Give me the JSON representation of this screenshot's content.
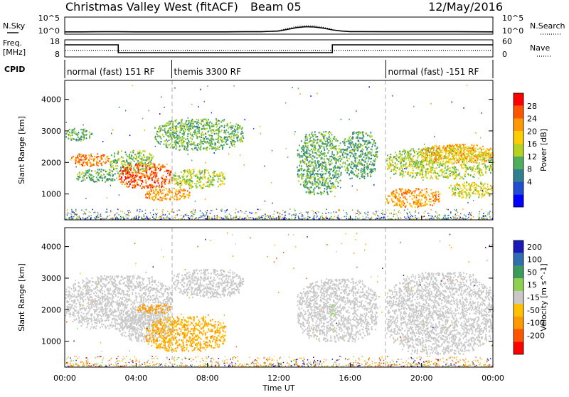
{
  "header": {
    "station": "Christmas Valley West (fitACF)",
    "beam": "Beam 05",
    "date": "12/May/2016"
  },
  "side_labels": {
    "nsky": "N.Sky",
    "freq_line1": "Freq.",
    "freq_line2": "[MHz]",
    "cpid": "CPID",
    "nsearch": "N.Search",
    "nave": "Nave"
  },
  "cpid_segments": [
    {
      "label": "normal (fast) 151 RF",
      "start_h": 0,
      "end_h": 6
    },
    {
      "label": "themis 3300 RF",
      "start_h": 6,
      "end_h": 18
    },
    {
      "label": "normal (fast) -151 RF",
      "start_h": 18,
      "end_h": 24
    }
  ],
  "noise_axis": {
    "left_ticks": [
      "10^5",
      "10^0"
    ],
    "right_ticks": [
      "10^5",
      "10^0"
    ]
  },
  "freq_axis": {
    "left_ticks": [
      "18",
      "8"
    ],
    "right_ticks": [
      "60",
      "0"
    ]
  },
  "x_axis": {
    "label": "Time UT",
    "ticks": [
      "00:00",
      "04:00",
      "08:00",
      "12:00",
      "16:00",
      "20:00",
      "00:00"
    ],
    "range_h": [
      0,
      24
    ]
  },
  "power_panel": {
    "ylabel": "Slant Range [km]",
    "yticks": [
      1000,
      2000,
      3000,
      4000
    ],
    "ylim": [
      180,
      4600
    ],
    "cbar_label": "Power [dB]",
    "cbar_ticks": [
      "28",
      "24",
      "20",
      "16",
      "12",
      "8",
      "4"
    ],
    "cbar_colors": [
      "#ff0000",
      "#ff5500",
      "#ff9900",
      "#ffcc00",
      "#b4d21e",
      "#4fae5a",
      "#2f7f8f",
      "#1f4fd0",
      "#0000ff"
    ]
  },
  "velocity_panel": {
    "ylabel": "Slant Range [km]",
    "yticks": [
      1000,
      2000,
      3000,
      4000
    ],
    "ylim": [
      180,
      4600
    ],
    "cbar_label": "Velocity [m s^-1]",
    "cbar_ticks": [
      "200",
      "100",
      "50",
      "15",
      "-15",
      "-50",
      "-100",
      "-200"
    ],
    "cbar_colors": [
      "#1a1ab8",
      "#2f6fb0",
      "#3a9a5a",
      "#8fd14f",
      "#c8c8c8",
      "#ffc000",
      "#ff9900",
      "#ff5500",
      "#ff0000"
    ]
  },
  "chart_data": [
    {
      "type": "line",
      "title": "N.Sky / N.Search",
      "x_unit": "hours UT",
      "series": [
        {
          "name": "N.Sky",
          "x": [
            0,
            1,
            2,
            3,
            4,
            5,
            6,
            7,
            8,
            9,
            10,
            11,
            12,
            12.5,
            13,
            13.5,
            14,
            14.5,
            15,
            15.5,
            16,
            18,
            20,
            22,
            24
          ],
          "y_log10": [
            0.3,
            0.3,
            0.35,
            0.35,
            0.3,
            0.3,
            0.3,
            0.3,
            0.3,
            0.3,
            0.35,
            0.35,
            0.6,
            1.2,
            1.8,
            2.1,
            2.0,
            1.6,
            1.0,
            0.6,
            0.4,
            0.35,
            0.35,
            0.35,
            0.3
          ]
        },
        {
          "name": "N.Search",
          "x": [
            12,
            12.5,
            13,
            13.5,
            14,
            14.5,
            15
          ],
          "y_log10": [
            0.8,
            1.5,
            2.2,
            2.5,
            2.4,
            1.9,
            1.2
          ]
        }
      ]
    },
    {
      "type": "line",
      "title": "Freq. / Nave",
      "x_unit": "hours UT",
      "series": [
        {
          "name": "Freq. [MHz]",
          "x": [
            0,
            3,
            3,
            15,
            15,
            24
          ],
          "y": [
            15.5,
            15.5,
            10,
            10,
            15.5,
            15.5
          ]
        },
        {
          "name": "Nave",
          "x": [
            0,
            24
          ],
          "y": [
            25,
            25
          ]
        }
      ]
    },
    {
      "type": "heatmap",
      "title": "Power [dB]",
      "x_unit": "hours UT",
      "y_unit": "Slant Range [km]",
      "regions": [
        {
          "x0": 0,
          "x1": 1.5,
          "y0": 2700,
          "y1": 3100,
          "value_db": 10
        },
        {
          "x0": 0.3,
          "x1": 2.5,
          "y0": 1900,
          "y1": 2300,
          "value_db": 24
        },
        {
          "x0": 2.5,
          "x1": 5,
          "y0": 1700,
          "y1": 2400,
          "value_db": 12
        },
        {
          "x0": 0.5,
          "x1": 3,
          "y0": 1400,
          "y1": 1800,
          "value_db": 9
        },
        {
          "x0": 3,
          "x1": 6,
          "y0": 1200,
          "y1": 2000,
          "value_db": 26
        },
        {
          "x0": 4.5,
          "x1": 7,
          "y0": 800,
          "y1": 1200,
          "value_db": 22
        },
        {
          "x0": 6,
          "x1": 9,
          "y0": 1200,
          "y1": 1800,
          "value_db": 14
        },
        {
          "x0": 5,
          "x1": 10,
          "y0": 2400,
          "y1": 3400,
          "value_db": 11
        },
        {
          "x0": 13,
          "x1": 15.5,
          "y0": 1000,
          "y1": 3000,
          "value_db": 10
        },
        {
          "x0": 15.5,
          "x1": 17.5,
          "y0": 1500,
          "y1": 3000,
          "value_db": 9
        },
        {
          "x0": 18,
          "x1": 24,
          "y0": 1500,
          "y1": 2500,
          "value_db": 14
        },
        {
          "x0": 20,
          "x1": 24,
          "y0": 2000,
          "y1": 2600,
          "value_db": 20
        },
        {
          "x0": 18,
          "x1": 21,
          "y0": 600,
          "y1": 1200,
          "value_db": 22
        },
        {
          "x0": 21.5,
          "x1": 24,
          "y0": 900,
          "y1": 1400,
          "value_db": 16
        }
      ]
    },
    {
      "type": "heatmap",
      "title": "Velocity [m s^-1]",
      "x_unit": "hours UT",
      "y_unit": "Slant Range [km]",
      "regions": [
        {
          "x0": 0,
          "x1": 6,
          "y0": 1400,
          "y1": 3100,
          "value_ms": 0
        },
        {
          "x0": 3,
          "x1": 6,
          "y0": 1000,
          "y1": 2000,
          "value_ms": 0
        },
        {
          "x0": 4.5,
          "x1": 9,
          "y0": 700,
          "y1": 1800,
          "value_ms": -50
        },
        {
          "x0": 4,
          "x1": 6,
          "y0": 1900,
          "y1": 2200,
          "value_ms": -80
        },
        {
          "x0": 6,
          "x1": 10,
          "y0": 2400,
          "y1": 3300,
          "value_ms": 0
        },
        {
          "x0": 14.8,
          "x1": 15.2,
          "y0": 1800,
          "y1": 2200,
          "value_ms": 30
        },
        {
          "x0": 13,
          "x1": 17.5,
          "y0": 1000,
          "y1": 3000,
          "value_ms": 0
        },
        {
          "x0": 18,
          "x1": 24,
          "y0": 600,
          "y1": 3200,
          "value_ms": 0
        }
      ]
    }
  ]
}
